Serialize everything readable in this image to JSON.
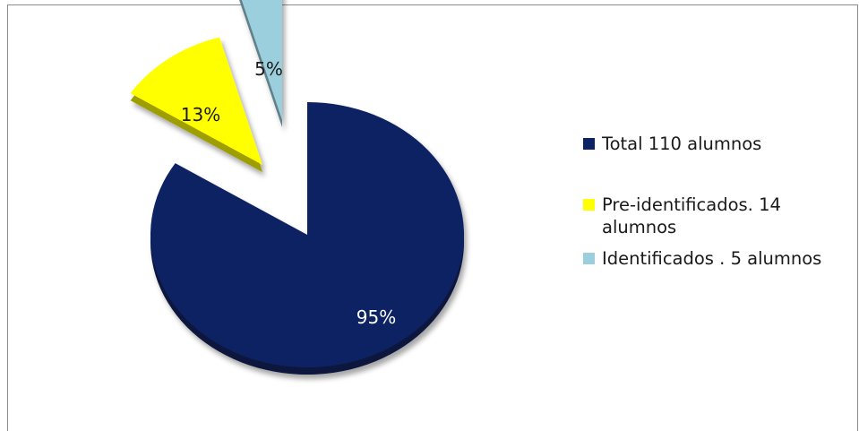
{
  "chart_data": {
    "type": "pie",
    "exploded": true,
    "style": "3d",
    "legend_position": "right",
    "slices": [
      {
        "name": "Total 110 alumnos",
        "label": "95%",
        "value": 95,
        "color": "#0d2464",
        "label_color": "#ffffff"
      },
      {
        "name": "Pre-identificados. 14 alumnos",
        "label": "13%",
        "value": 13,
        "color": "#ffff00",
        "label_color": "#1a1a1a"
      },
      {
        "name": "Identificados . 5 alumnos",
        "label": "5%",
        "value": 5,
        "color": "#9ccfde",
        "label_color": "#1a1a1a"
      }
    ]
  }
}
